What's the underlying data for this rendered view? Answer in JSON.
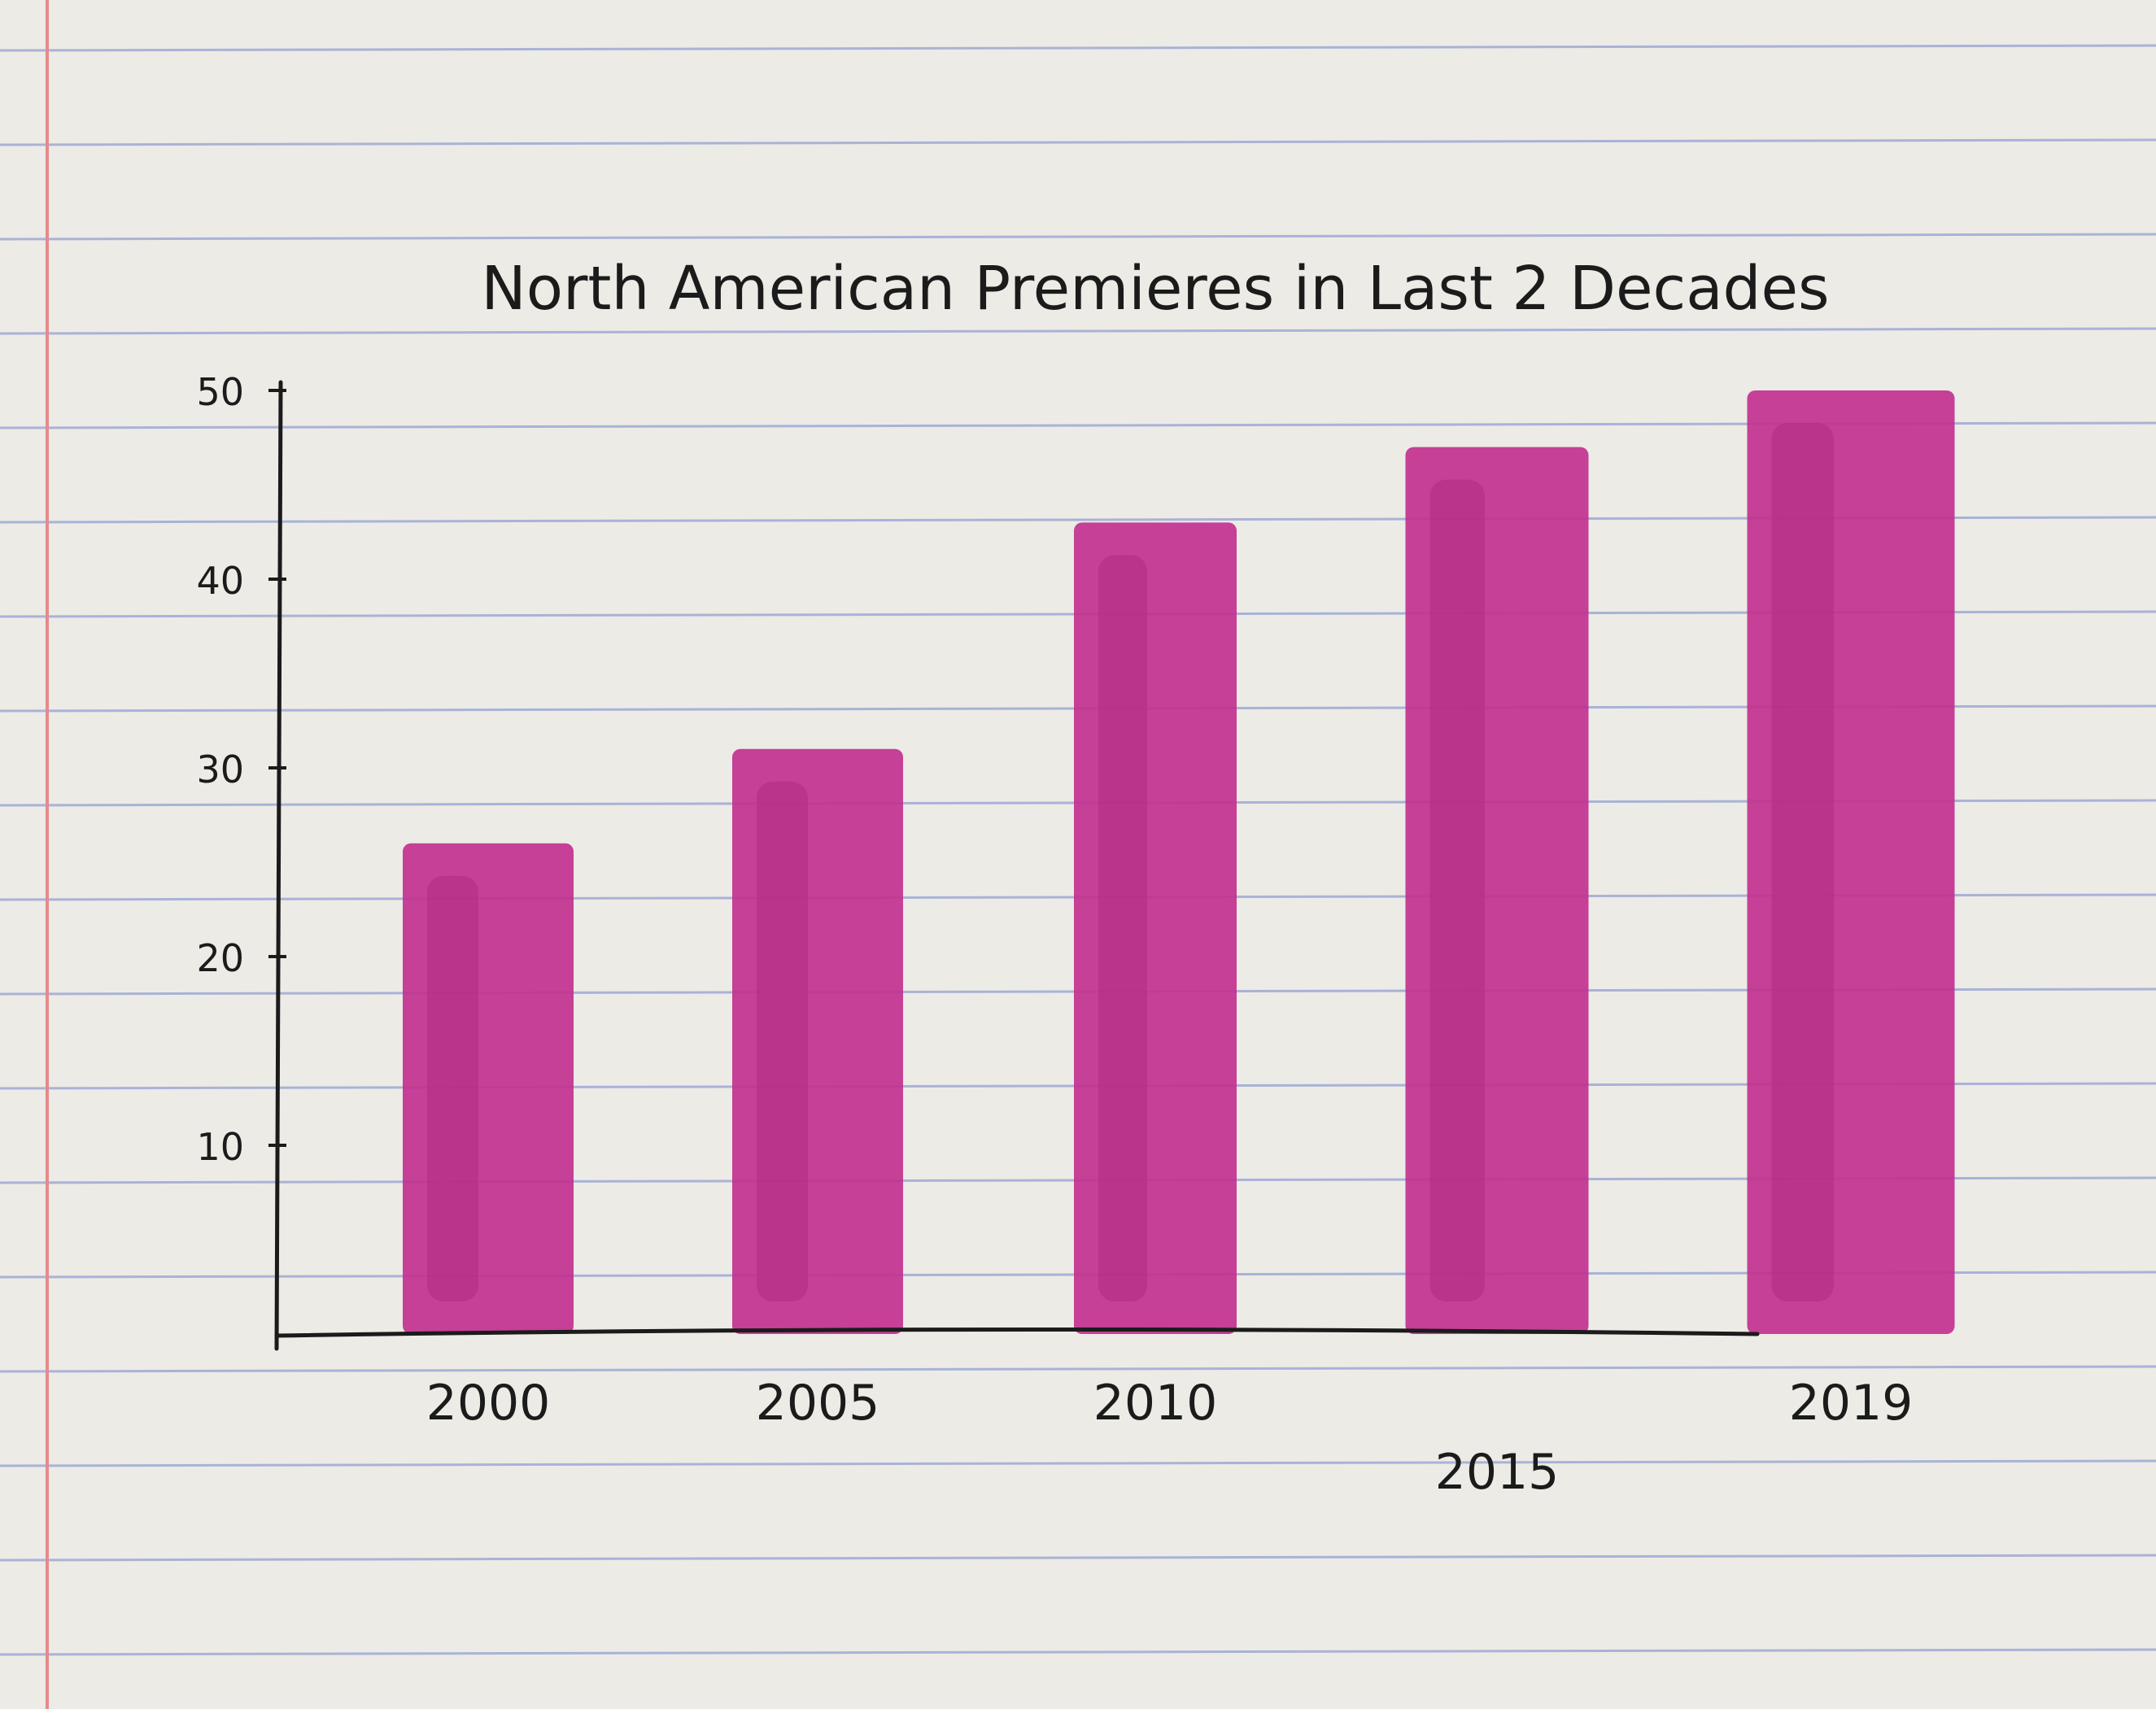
{
  "chart_data": {
    "type": "bar",
    "title": "North American Premieres in Last 2 Decades",
    "xlabel": "",
    "ylabel": "",
    "categories": [
      "2000",
      "2005",
      "2010",
      "2015",
      "2019"
    ],
    "values": [
      26,
      31,
      43,
      47,
      50
    ],
    "ylim": [
      0,
      50
    ],
    "yticks": [
      10,
      20,
      30,
      40,
      50
    ],
    "grid": false,
    "legend": "none",
    "bar_color": "#c2338f"
  }
}
